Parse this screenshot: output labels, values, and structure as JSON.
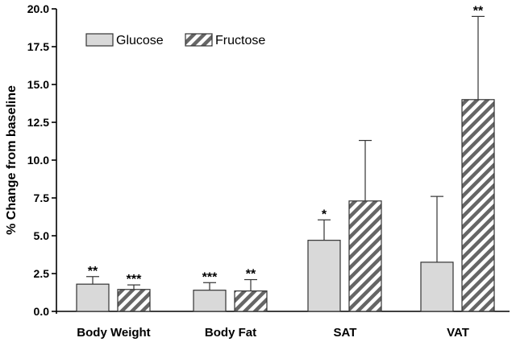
{
  "chart_data": {
    "type": "bar",
    "title": "",
    "xlabel": "",
    "ylabel": "% Change from baseline",
    "ylim": [
      0,
      20
    ],
    "yticks": [
      "0.0",
      "2.5",
      "5.0",
      "7.5",
      "10.0",
      "12.5",
      "15.0",
      "17.5",
      "20.0"
    ],
    "categories": [
      "Body Weight",
      "Body Fat",
      "SAT",
      "VAT"
    ],
    "grid": false,
    "legend_position": "top-left",
    "series": [
      {
        "name": "Glucose",
        "pattern": "solid",
        "color": "#d9d9d9",
        "values": [
          1.8,
          1.4,
          4.7,
          3.25
        ],
        "errors": [
          0.5,
          0.5,
          1.35,
          4.35
        ],
        "significance": [
          "**",
          "***",
          "*",
          ""
        ]
      },
      {
        "name": "Fructose",
        "pattern": "diagonal-hatch",
        "color": "#6b6b6b",
        "values": [
          1.45,
          1.35,
          7.3,
          14.0
        ],
        "errors": [
          0.3,
          0.75,
          4.0,
          5.5
        ],
        "significance": [
          "***",
          "**",
          "",
          "**"
        ]
      }
    ]
  }
}
